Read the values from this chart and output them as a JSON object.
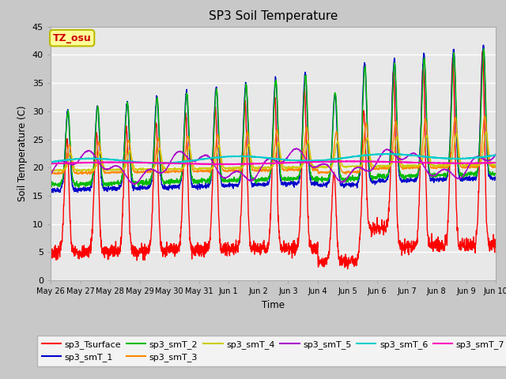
{
  "title": "SP3 Soil Temperature",
  "ylabel": "Soil Temperature (C)",
  "xlabel": "Time",
  "annotation": "TZ_osu",
  "ylim": [
    0,
    45
  ],
  "figsize": [
    6.4,
    4.8
  ],
  "dpi": 100,
  "plot_bg_color": "#e8e8e8",
  "fig_bg_color": "#c8c8c8",
  "series_colors": {
    "sp3_Tsurface": "#ff0000",
    "sp3_smT_1": "#0000cc",
    "sp3_smT_2": "#00bb00",
    "sp3_smT_3": "#ff8800",
    "sp3_smT_4": "#cccc00",
    "sp3_smT_5": "#aa00cc",
    "sp3_smT_6": "#00cccc",
    "sp3_smT_7": "#ff00bb"
  },
  "xtick_labels": [
    "May 26",
    "May 27",
    "May 28",
    "May 29",
    "May 30",
    "May 31",
    "Jun 1",
    "Jun 2",
    "Jun 3",
    "Jun 4",
    "Jun 5",
    "Jun 6",
    "Jun 7",
    "Jun 8",
    "Jun 9",
    "Jun 10"
  ],
  "ytick_labels": [
    "0",
    "5",
    "10",
    "15",
    "20",
    "25",
    "30",
    "35",
    "40",
    "45"
  ],
  "ytick_vals": [
    0,
    5,
    10,
    15,
    20,
    25,
    30,
    35,
    40,
    45
  ],
  "n_days": 15,
  "pts_per_day": 144
}
